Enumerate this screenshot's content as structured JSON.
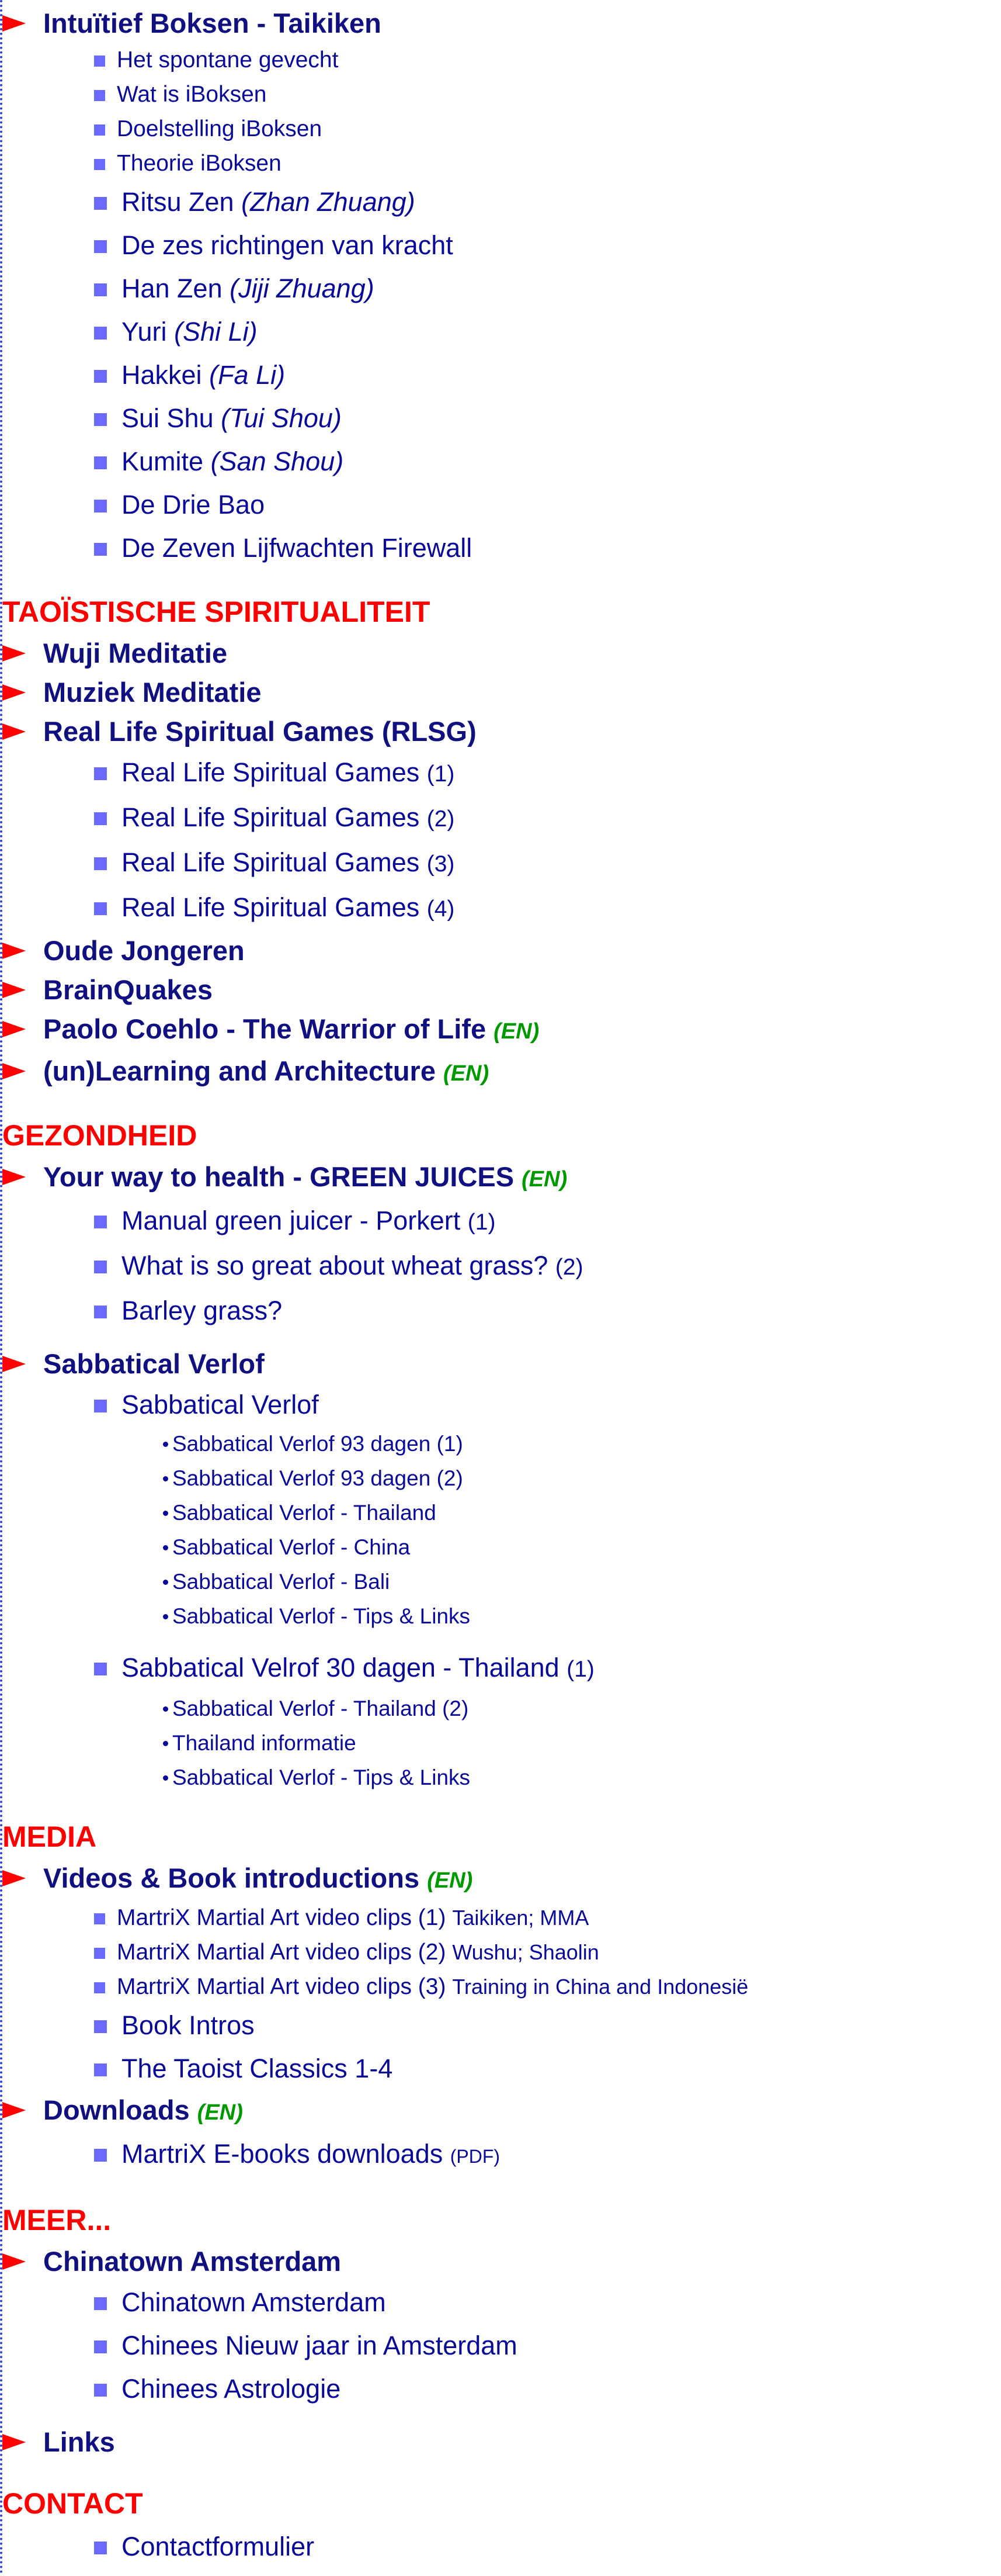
{
  "sections": [
    {
      "topics": [
        {
          "title": "Intuïtief Boksen - Taikiken",
          "pages": [
            {
              "title": "Het spontane gevecht",
              "size": "small"
            },
            {
              "title": "Wat is iBoksen",
              "size": "small"
            },
            {
              "title": "Doelstelling iBoksen",
              "size": "small"
            },
            {
              "title": "Theorie iBoksen",
              "size": "small"
            },
            {
              "title": "Ritsu Zen",
              "alias": "(Zhan Zhuang)"
            },
            {
              "title": "De zes richtingen van kracht"
            },
            {
              "title": "Han Zen",
              "alias": "(Jiji Zhuang)"
            },
            {
              "title": "Yuri",
              "alias": "(Shi Li)"
            },
            {
              "title": "Hakkei",
              "alias": "(Fa Li)"
            },
            {
              "title": "Sui Shu",
              "alias": "(Tui Shou)"
            },
            {
              "title": "Kumite",
              "alias": "(San Shou)"
            },
            {
              "title": "De Drie Bao"
            },
            {
              "title": "De Zeven Lijfwachten Firewall"
            }
          ]
        }
      ]
    },
    {
      "title": "TAOÏSTISCHE SPIRITUALITEIT",
      "topics": [
        {
          "title": "Wuji Meditatie"
        },
        {
          "title": "Muziek Meditatie"
        },
        {
          "title": "Real Life Spiritual Games (RLSG)",
          "pages": [
            {
              "title": "Real Life Spiritual Games",
              "note": "(1)"
            },
            {
              "title": "Real Life Spiritual Games",
              "note": "(2)"
            },
            {
              "title": "Real Life Spiritual Games",
              "note": "(3)"
            },
            {
              "title": "Real Life Spiritual Games",
              "note": "(4)"
            }
          ]
        },
        {
          "title": "Oude Jongeren"
        },
        {
          "title": "BrainQuakes"
        },
        {
          "title": "Paolo Coehlo - The Warrior of Life",
          "lang": "(EN)"
        },
        {
          "title": "(un)Learning and Architecture",
          "lang": "(EN)"
        }
      ]
    },
    {
      "title": "GEZONDHEID",
      "topics": [
        {
          "title": "Your way to health - GREEN JUICES",
          "lang": "(EN)",
          "pages": [
            {
              "title": "Manual green juicer - Porkert",
              "note": "(1)"
            },
            {
              "title": "What is so great about wheat grass?",
              "note": "(2)"
            },
            {
              "title": "Barley grass?"
            }
          ]
        },
        {
          "title": "Sabbatical Verlof",
          "pages": [
            {
              "title": "Sabbatical Verlof",
              "subpages": [
                "Sabbatical Verlof 93 dagen (1)",
                "Sabbatical Verlof 93 dagen (2)",
                "Sabbatical Verlof - Thailand",
                "Sabbatical Verlof - China",
                "Sabbatical Verlof - Bali",
                "Sabbatical Verlof - Tips & Links"
              ]
            },
            {
              "title": "Sabbatical Velrof 30 dagen - Thailand",
              "note": "(1)",
              "subpages": [
                "Sabbatical Verlof - Thailand (2)",
                "Thailand informatie",
                "Sabbatical Verlof - Tips & Links"
              ]
            }
          ]
        }
      ]
    },
    {
      "title": "MEDIA",
      "topics": [
        {
          "title": "Videos & Book introductions",
          "lang": "(EN)",
          "pages": [
            {
              "title": "MartriX Martial Art video clips (1)",
              "note": "Taikiken; MMA",
              "size": "small"
            },
            {
              "title": "MartriX Martial Art video clips (2)",
              "note": "Wushu; Shaolin",
              "size": "small"
            },
            {
              "title": "MartriX Martial Art video clips (3)",
              "note": "Training in China and Indonesië",
              "size": "small"
            },
            {
              "title": "Book Intros"
            },
            {
              "title": "The Taoist Classics 1-4"
            }
          ]
        },
        {
          "title": "Downloads",
          "lang": "(EN)",
          "pages": [
            {
              "title": "MartriX E-books downloads",
              "note": "(PDF)",
              "small_note": true
            }
          ]
        }
      ]
    },
    {
      "title": "MEER...",
      "topics": [
        {
          "title": "Chinatown Amsterdam",
          "pages": [
            {
              "title": "Chinatown Amsterdam"
            },
            {
              "title": "Chinees Nieuw jaar in Amsterdam"
            },
            {
              "title": "Chinees Astrologie"
            }
          ]
        },
        {
          "title": "Links"
        }
      ]
    },
    {
      "title": "CONTACT",
      "pages": [
        {
          "title": "Contactformulier"
        }
      ]
    }
  ]
}
